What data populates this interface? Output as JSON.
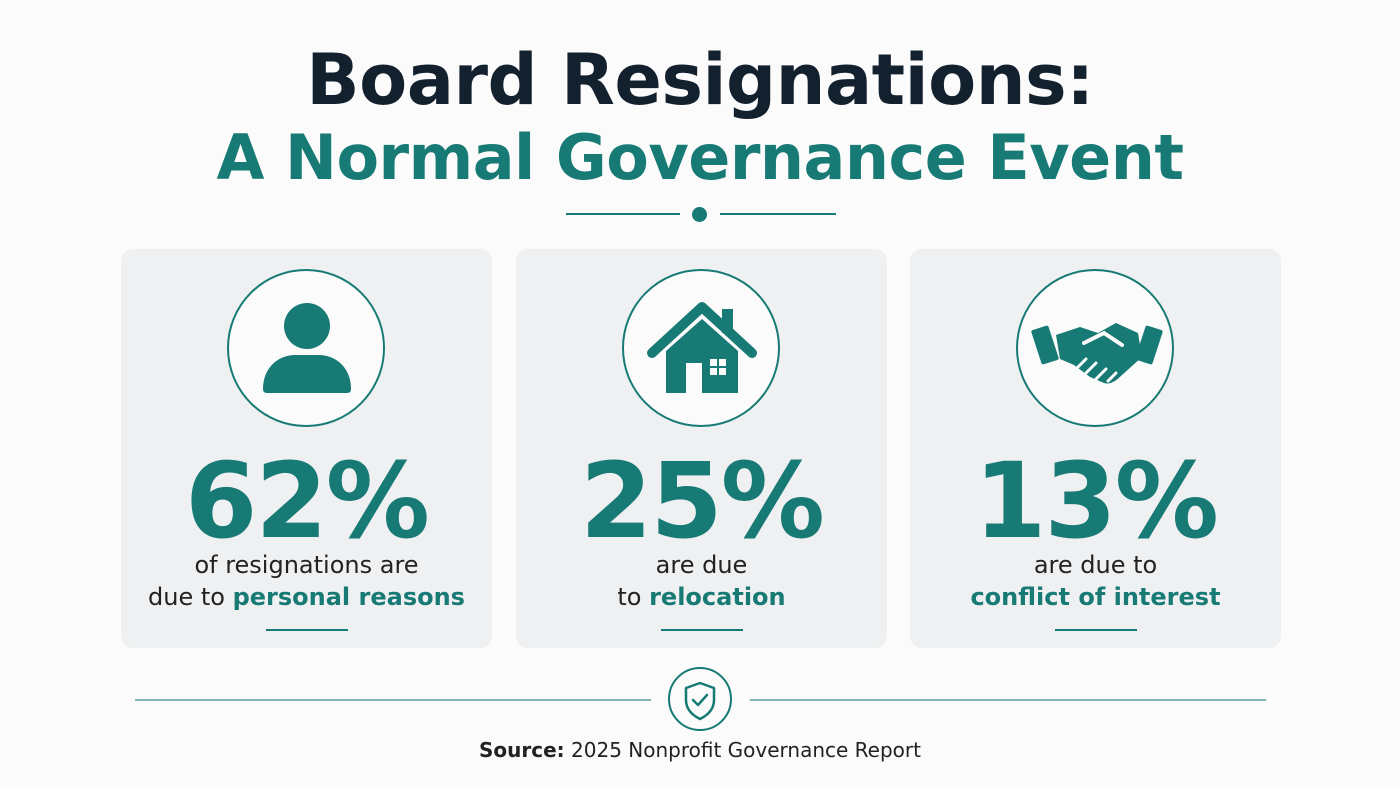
{
  "title": {
    "line1": "Board Resignations:",
    "line2": "A Normal Governance Event"
  },
  "colors": {
    "accent": "#177a75",
    "title_dark": "#13202e",
    "card_bg": "#eef0f2"
  },
  "cards": [
    {
      "icon": "person-icon",
      "percent": "62%",
      "desc_plain_1": "of resignations are",
      "desc_plain_2": "due to ",
      "desc_highlight": "personal reasons"
    },
    {
      "icon": "house-icon",
      "percent": "25%",
      "desc_plain_1": "are due",
      "desc_plain_2": "to ",
      "desc_highlight": "relocation"
    },
    {
      "icon": "handshake-icon",
      "percent": "13%",
      "desc_plain_1": "are due to",
      "desc_plain_2": "",
      "desc_highlight": "conflict of interest"
    }
  ],
  "footer": {
    "icon": "shield-check-icon",
    "source_label": "Source:",
    "source_text": " 2025 Nonprofit Governance Report"
  }
}
